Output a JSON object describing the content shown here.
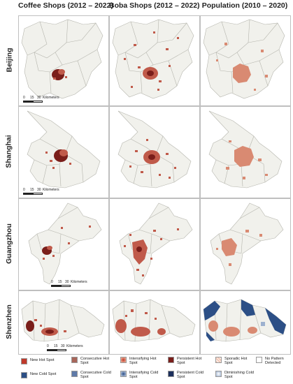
{
  "columns": {
    "coffee": "Coffee Shops (2012 – 2022)",
    "boba": "Boba Shops (2012 – 2022)",
    "population": "Population (2010 – 2020)"
  },
  "rows": {
    "beijing": "Beijing",
    "shanghai": "Shanghai",
    "guangzhou": "Guangzhou",
    "shenzhen": "Shenzhen"
  },
  "scale_bar": {
    "beijing": {
      "t0": "0",
      "t1": "15",
      "t2": "30",
      "unit": "Kilometers"
    },
    "shanghai": {
      "t0": "0",
      "t1": "15",
      "t2": "30",
      "unit": "Kilometers"
    },
    "guangzhou": {
      "t0": "0",
      "t1": "15",
      "t2": "30",
      "unit": "Kilometers"
    },
    "shenzhen": {
      "t0": "0",
      "t1": "15",
      "t2": "30",
      "unit": "Kilometers"
    }
  },
  "legend": {
    "new_hot": "New Hot Spot",
    "new_cold": "New Cold Spot",
    "consecutive_hot": "Consecutive Hot Spot",
    "consecutive_cold": "Consecutive Cold Spot",
    "intensifying_hot": "Intensifying Hot Spot",
    "intensifying_cold": "Intensifying Cold Spot",
    "persistent_hot": "Persistent Hot Spot",
    "persistent_cold": "Persistent Cold Spot",
    "sporadic_hot": "Sporadic Hot Spot",
    "diminishing_cold": "Diminishing Cold Spot",
    "no_pattern": "No Pattern Detected"
  },
  "colors": {
    "land": "#f1f1ec",
    "boundary": "#b5b5ad",
    "hot": "#c05a4a",
    "hot_light": "#d98a72",
    "hot_dark": "#7a1e1a",
    "cold": "#2c4f86",
    "cold_light": "#9db1cf"
  }
}
